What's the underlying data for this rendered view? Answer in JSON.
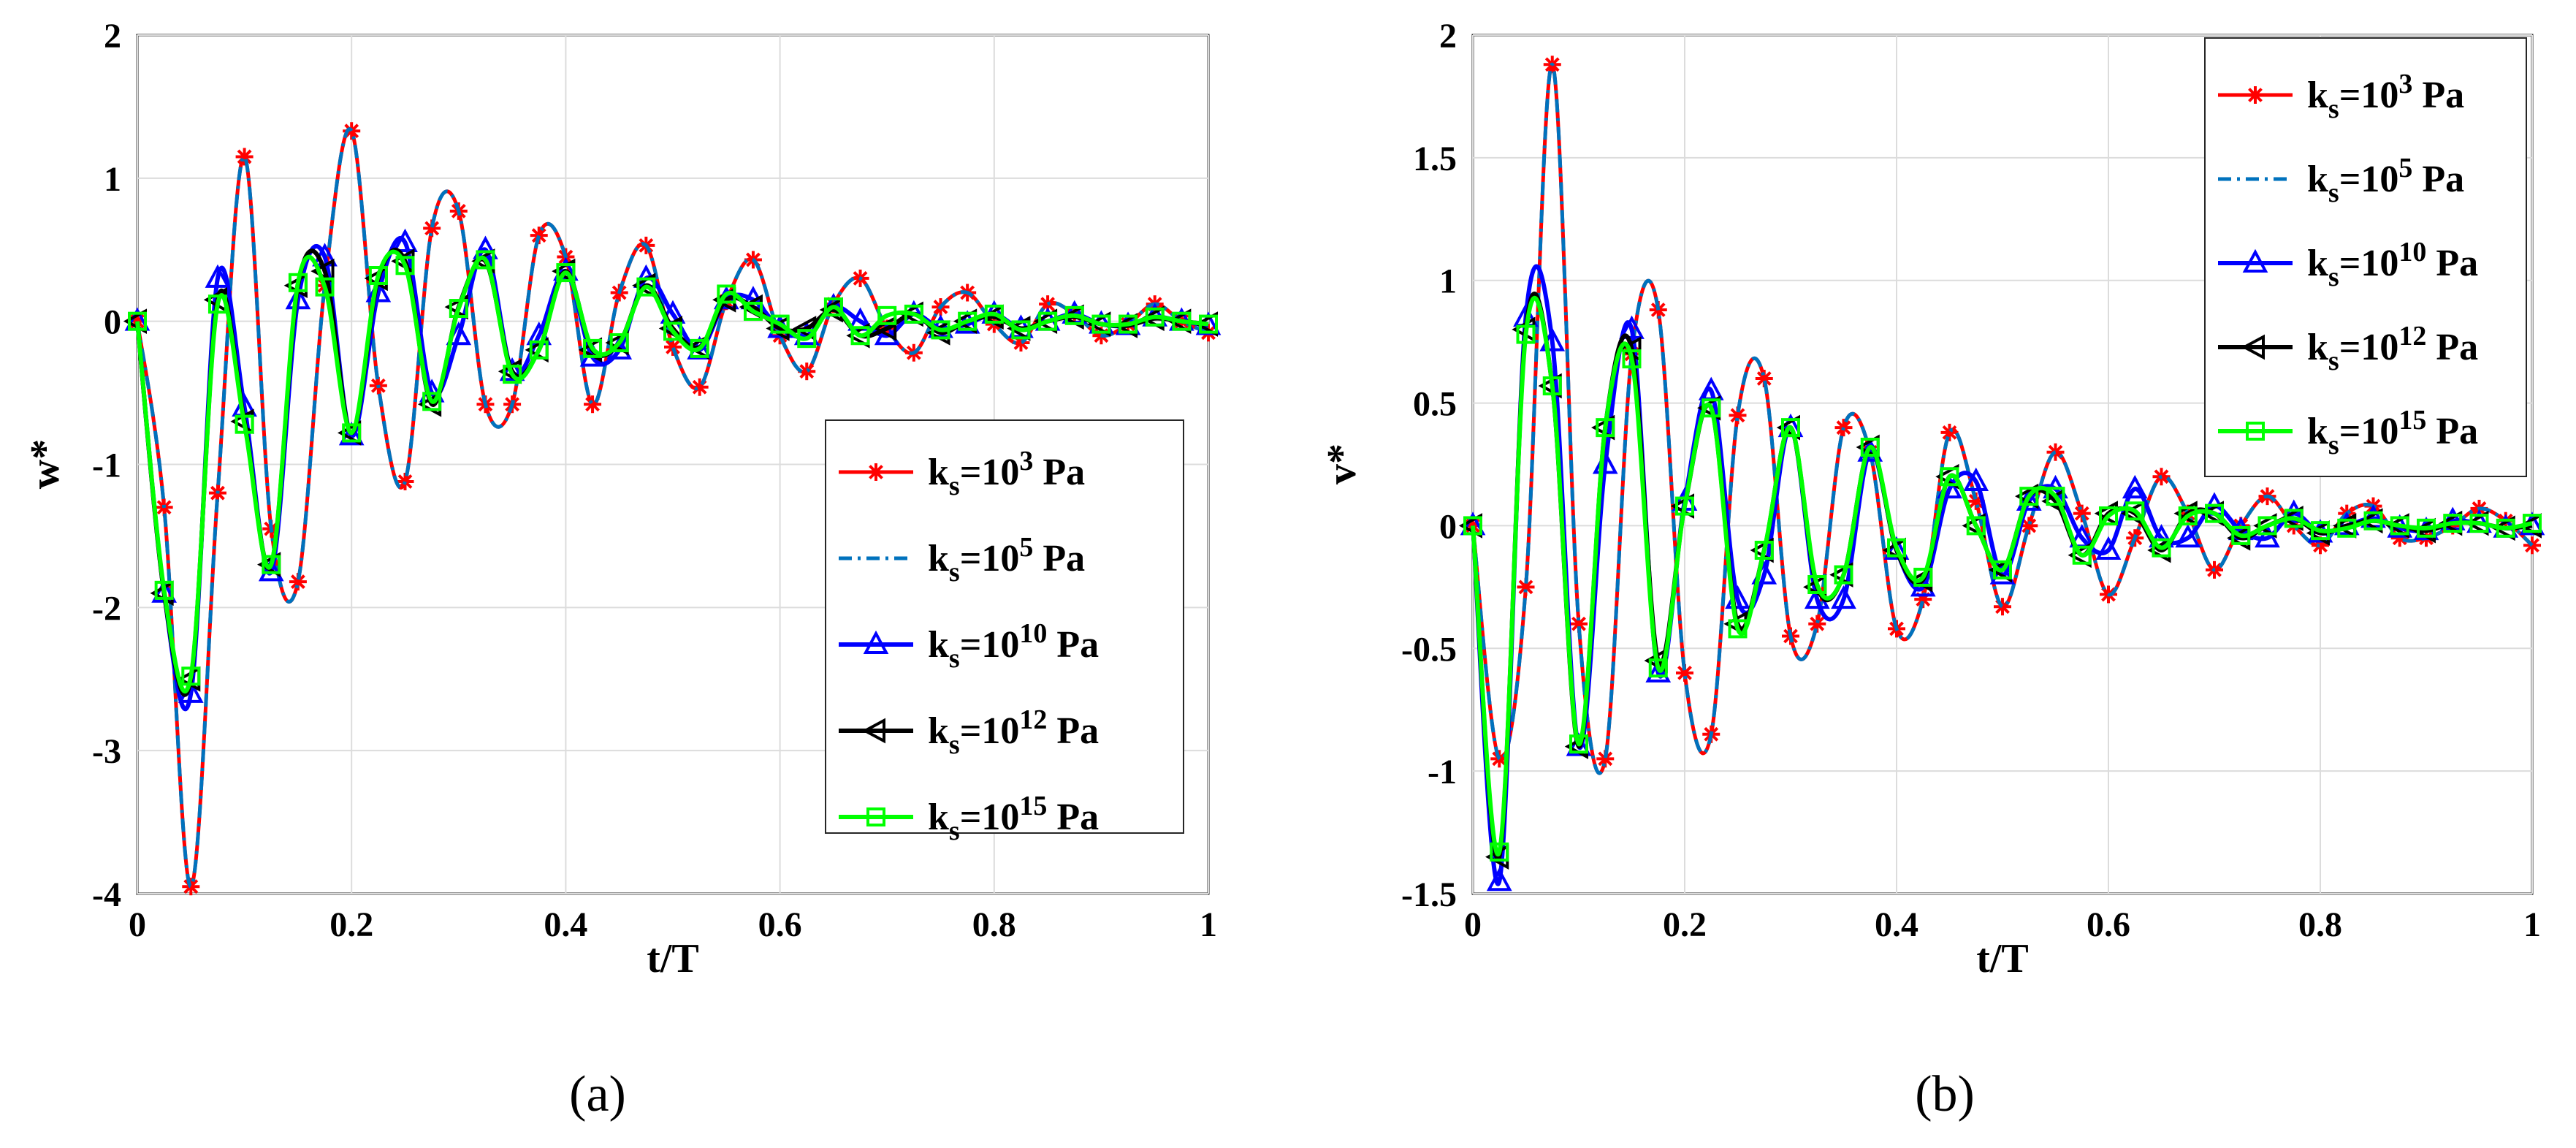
{
  "chart_data": [
    {
      "type": "line",
      "panel_label": "(a)",
      "xlabel": "t/T",
      "ylabel": "w*",
      "xlim": [
        0,
        1
      ],
      "ylim": [
        -4,
        2
      ],
      "xticks": [
        "0",
        "0.2",
        "0.4",
        "0.6",
        "0.8",
        "1"
      ],
      "xtick_values": [
        0,
        0.2,
        0.4,
        0.6,
        0.8,
        1
      ],
      "yticks": [
        "-4",
        "-3",
        "-2",
        "-1",
        "0",
        "1",
        "2"
      ],
      "ytick_values": [
        -4,
        -3,
        -2,
        -1,
        0,
        1,
        2
      ],
      "grid": true,
      "legend_position": "center-right",
      "x": [
        0,
        0.025,
        0.05,
        0.075,
        0.1,
        0.125,
        0.15,
        0.175,
        0.2,
        0.225,
        0.25,
        0.275,
        0.3,
        0.325,
        0.35,
        0.375,
        0.4,
        0.425,
        0.45,
        0.475,
        0.5,
        0.525,
        0.55,
        0.575,
        0.6,
        0.625,
        0.65,
        0.675,
        0.7,
        0.725,
        0.75,
        0.775,
        0.8,
        0.825,
        0.85,
        0.875,
        0.9,
        0.925,
        0.95,
        0.975,
        1
      ],
      "series": [
        {
          "name": "k_s=10^3 Pa",
          "color": "#ff0000",
          "values": [
            0,
            -1.3,
            -3.95,
            -1.2,
            1.15,
            -1.45,
            -1.82,
            0.25,
            1.33,
            -0.45,
            -1.12,
            0.65,
            0.77,
            -0.58,
            -0.58,
            0.6,
            0.45,
            -0.58,
            0.2,
            0.53,
            -0.18,
            -0.46,
            0.14,
            0.43,
            -0.1,
            -0.35,
            0.12,
            0.3,
            -0.05,
            -0.22,
            0.1,
            0.2,
            -0.02,
            -0.15,
            0.12,
            0.05,
            -0.1,
            -0.02,
            0.12,
            0.0,
            -0.08
          ]
        },
        {
          "name": "k_s=10^5 Pa",
          "color": "#0072bd",
          "values": [
            0,
            -1.3,
            -3.95,
            -1.2,
            1.15,
            -1.45,
            -1.82,
            0.25,
            1.33,
            -0.45,
            -1.12,
            0.65,
            0.77,
            -0.58,
            -0.58,
            0.6,
            0.45,
            -0.58,
            0.2,
            0.53,
            -0.18,
            -0.46,
            0.14,
            0.43,
            -0.1,
            -0.35,
            0.12,
            0.3,
            -0.05,
            -0.22,
            0.1,
            0.2,
            -0.02,
            -0.15,
            0.12,
            0.05,
            -0.1,
            -0.02,
            0.12,
            0.0,
            -0.08
          ]
        },
        {
          "name": "k_s=10^10 Pa",
          "color": "#0000ff",
          "values": [
            0,
            -1.9,
            -2.6,
            0.3,
            -0.6,
            -1.75,
            0.15,
            0.45,
            -0.8,
            0.2,
            0.55,
            -0.5,
            -0.1,
            0.5,
            -0.35,
            -0.1,
            0.35,
            -0.25,
            -0.2,
            0.3,
            0.05,
            -0.2,
            0.15,
            0.15,
            -0.05,
            -0.1,
            0.1,
            0.0,
            -0.1,
            0.05,
            -0.05,
            -0.02,
            0.05,
            -0.05,
            0.0,
            0.05,
            -0.02,
            -0.03,
            0.03,
            0.0,
            -0.03
          ]
        },
        {
          "name": "k_s=10^12 Pa",
          "color": "#000000",
          "values": [
            0,
            -1.9,
            -2.5,
            0.15,
            -0.7,
            -1.7,
            0.25,
            0.35,
            -0.78,
            0.3,
            0.42,
            -0.58,
            0.1,
            0.42,
            -0.35,
            -0.2,
            0.35,
            -0.2,
            -0.15,
            0.25,
            -0.05,
            -0.18,
            0.15,
            0.1,
            -0.05,
            -0.05,
            0.08,
            -0.1,
            -0.05,
            0.05,
            -0.08,
            0.0,
            0.03,
            -0.05,
            0.0,
            0.03,
            -0.02,
            -0.03,
            0.02,
            0.0,
            -0.02
          ]
        },
        {
          "name": "k_s=10^15 Pa",
          "color": "#00ff00",
          "values": [
            0,
            -1.88,
            -2.48,
            0.12,
            -0.72,
            -1.7,
            0.27,
            0.24,
            -0.78,
            0.32,
            0.39,
            -0.56,
            0.09,
            0.43,
            -0.37,
            -0.2,
            0.34,
            -0.19,
            -0.15,
            0.24,
            -0.07,
            -0.19,
            0.19,
            0.07,
            -0.02,
            -0.12,
            0.1,
            -0.1,
            0.04,
            0.05,
            -0.06,
            0.0,
            0.05,
            -0.06,
            0.0,
            0.04,
            -0.02,
            -0.02,
            0.03,
            0.0,
            -0.02
          ]
        }
      ]
    },
    {
      "type": "line",
      "panel_label": "(b)",
      "xlabel": "t/T",
      "ylabel": "v*",
      "xlim": [
        0,
        1
      ],
      "ylim": [
        -1.5,
        2
      ],
      "xticks": [
        "0",
        "0.2",
        "0.4",
        "0.6",
        "0.8",
        "1"
      ],
      "xtick_values": [
        0,
        0.2,
        0.4,
        0.6,
        0.8,
        1
      ],
      "yticks": [
        "-1.5",
        "-1",
        "-0.5",
        "0",
        "0.5",
        "1",
        "1.5",
        "2"
      ],
      "ytick_values": [
        -1.5,
        -1,
        -0.5,
        0,
        0.5,
        1,
        1.5,
        2
      ],
      "grid": true,
      "legend_position": "top-right",
      "x": [
        0,
        0.025,
        0.05,
        0.075,
        0.1,
        0.125,
        0.15,
        0.175,
        0.2,
        0.225,
        0.25,
        0.275,
        0.3,
        0.325,
        0.35,
        0.375,
        0.4,
        0.425,
        0.45,
        0.475,
        0.5,
        0.525,
        0.55,
        0.575,
        0.6,
        0.625,
        0.65,
        0.675,
        0.7,
        0.725,
        0.75,
        0.775,
        0.8,
        0.825,
        0.85,
        0.875,
        0.9,
        0.925,
        0.95,
        0.975,
        1
      ],
      "series": [
        {
          "name": "k_s=10^3 Pa",
          "color": "#ff0000",
          "values": [
            0,
            -0.95,
            -0.25,
            1.88,
            -0.4,
            -0.95,
            0.7,
            0.88,
            -0.6,
            -0.85,
            0.45,
            0.6,
            -0.45,
            -0.4,
            0.4,
            0.3,
            -0.42,
            -0.3,
            0.38,
            0.1,
            -0.33,
            0.0,
            0.3,
            0.05,
            -0.28,
            -0.05,
            0.2,
            0.05,
            -0.18,
            0.0,
            0.12,
            0.0,
            -0.08,
            0.05,
            0.08,
            -0.05,
            -0.05,
            0.0,
            0.07,
            0.02,
            -0.08
          ]
        },
        {
          "name": "k_s=10^5 Pa",
          "color": "#0072bd",
          "values": [
            0,
            -0.95,
            -0.25,
            1.88,
            -0.4,
            -0.95,
            0.7,
            0.88,
            -0.6,
            -0.85,
            0.45,
            0.6,
            -0.45,
            -0.4,
            0.4,
            0.3,
            -0.42,
            -0.3,
            0.38,
            0.1,
            -0.33,
            0.0,
            0.3,
            0.05,
            -0.28,
            -0.05,
            0.2,
            0.05,
            -0.18,
            0.0,
            0.12,
            0.0,
            -0.08,
            0.05,
            0.08,
            -0.05,
            -0.05,
            0.0,
            0.07,
            0.02,
            -0.08
          ]
        },
        {
          "name": "k_s=10^10 Pa",
          "color": "#0000ff",
          "values": [
            0,
            -1.45,
            0.85,
            0.75,
            -0.9,
            0.25,
            0.8,
            -0.6,
            0.1,
            0.55,
            -0.3,
            -0.2,
            0.4,
            -0.3,
            -0.3,
            0.3,
            -0.1,
            -0.25,
            0.15,
            0.18,
            -0.2,
            0.1,
            0.15,
            -0.05,
            -0.1,
            0.15,
            -0.05,
            -0.05,
            0.08,
            -0.02,
            -0.05,
            0.05,
            -0.03,
            0.0,
            0.03,
            -0.01,
            -0.02,
            0.02,
            0.01,
            -0.01,
            0.0
          ]
        },
        {
          "name": "k_s=10^12 Pa",
          "color": "#000000",
          "values": [
            0,
            -1.35,
            0.8,
            0.57,
            -0.9,
            0.4,
            0.72,
            -0.55,
            0.08,
            0.48,
            -0.4,
            -0.1,
            0.4,
            -0.25,
            -0.2,
            0.32,
            -0.1,
            -0.22,
            0.2,
            0.0,
            -0.18,
            0.12,
            0.1,
            -0.12,
            0.05,
            0.05,
            -0.1,
            0.05,
            0.05,
            -0.05,
            0.0,
            0.03,
            -0.03,
            0.0,
            0.02,
            0.0,
            -0.02,
            0.01,
            0.01,
            -0.01,
            0.0
          ]
        },
        {
          "name": "k_s=10^15 Pa",
          "color": "#00ff00",
          "values": [
            0,
            -1.33,
            0.78,
            0.57,
            -0.89,
            0.4,
            0.68,
            -0.58,
            0.08,
            0.48,
            -0.42,
            -0.1,
            0.4,
            -0.24,
            -0.2,
            0.32,
            -0.09,
            -0.21,
            0.2,
            0.0,
            -0.18,
            0.12,
            0.12,
            -0.12,
            0.04,
            0.06,
            -0.09,
            0.04,
            0.05,
            -0.04,
            0.0,
            0.03,
            -0.02,
            -0.01,
            0.02,
            0.0,
            -0.01,
            0.01,
            0.01,
            -0.01,
            0.01
          ]
        }
      ]
    }
  ]
}
